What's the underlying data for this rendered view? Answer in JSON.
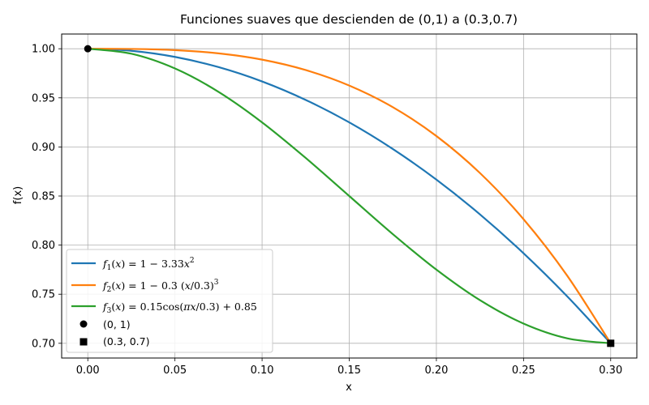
{
  "chart_data": {
    "type": "line",
    "title": "Funciones suaves que descienden de (0,1) a (0.3,0.7)",
    "xlabel": "x",
    "ylabel": "f(x)",
    "xlim": [
      -0.015,
      0.315
    ],
    "ylim": [
      0.685,
      1.015
    ],
    "grid": true,
    "legend_position": "lower-left",
    "xticks": [
      0.0,
      0.05,
      0.1,
      0.15,
      0.2,
      0.25,
      0.3
    ],
    "xtick_labels": [
      "0.00",
      "0.05",
      "0.10",
      "0.15",
      "0.20",
      "0.25",
      "0.30"
    ],
    "yticks": [
      0.7,
      0.75,
      0.8,
      0.85,
      0.9,
      0.95,
      1.0
    ],
    "ytick_labels": [
      "0.70",
      "0.75",
      "0.80",
      "0.85",
      "0.90",
      "0.95",
      "1.00"
    ],
    "series": [
      {
        "name": "f1(x) = 1 − 3.33x²",
        "color": "#1f77b4",
        "x": [
          0.0,
          0.025,
          0.05,
          0.075,
          0.1,
          0.125,
          0.15,
          0.175,
          0.2,
          0.225,
          0.25,
          0.275,
          0.3
        ],
        "y": [
          1.0,
          0.9979,
          0.9917,
          0.9813,
          0.9667,
          0.9479,
          0.925,
          0.8979,
          0.8667,
          0.8313,
          0.7917,
          0.7479,
          0.7
        ]
      },
      {
        "name": "f2(x) = 1 − 0.3 (x/0.3)³",
        "color": "#ff7f0e",
        "x": [
          0.0,
          0.025,
          0.05,
          0.075,
          0.1,
          0.125,
          0.15,
          0.175,
          0.2,
          0.225,
          0.25,
          0.275,
          0.3
        ],
        "y": [
          1.0,
          0.9998,
          0.9986,
          0.9953,
          0.9889,
          0.9783,
          0.9625,
          0.9405,
          0.9111,
          0.8734,
          0.8264,
          0.769,
          0.7
        ]
      },
      {
        "name": "f3(x) = 0.15cos(πx/0.3) + 0.85",
        "color": "#2ca02c",
        "x": [
          0.0,
          0.025,
          0.05,
          0.075,
          0.1,
          0.125,
          0.15,
          0.175,
          0.2,
          0.225,
          0.25,
          0.275,
          0.3
        ],
        "y": [
          1.0,
          0.9949,
          0.9799,
          0.9561,
          0.925,
          0.8888,
          0.85,
          0.8112,
          0.775,
          0.7439,
          0.7201,
          0.7051,
          0.7
        ]
      }
    ],
    "points": [
      {
        "name": "(0, 1)",
        "x": 0.0,
        "y": 1.0,
        "marker": "circle",
        "color": "#000000"
      },
      {
        "name": "(0.3, 0.7)",
        "x": 0.3,
        "y": 0.7,
        "marker": "square",
        "color": "#000000"
      }
    ]
  }
}
